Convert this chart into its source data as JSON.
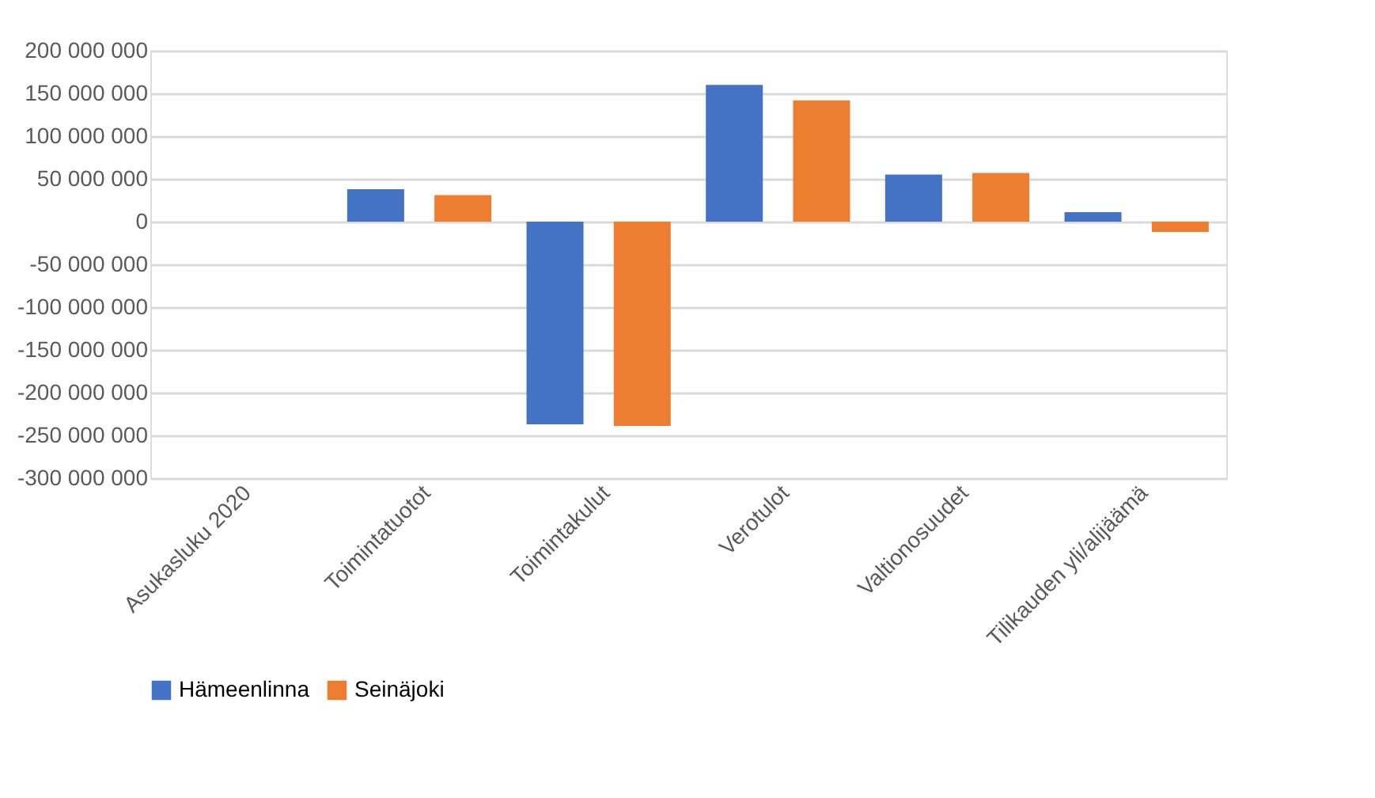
{
  "chart_data": {
    "type": "bar",
    "categories": [
      "Asukasluku 2020",
      "Toimintatuotot",
      "Toimintakulut",
      "Verotulot",
      "Valtionosuudet",
      "Tilikauden yli/alijäämä"
    ],
    "series": [
      {
        "name": "Hämeenlinna",
        "color": "#4472c4",
        "values": [
          0,
          38000000,
          -237000000,
          160000000,
          55000000,
          11000000
        ]
      },
      {
        "name": "Seinäjoki",
        "color": "#ed7d31",
        "values": [
          0,
          31000000,
          -239000000,
          142000000,
          57000000,
          -12000000
        ]
      }
    ],
    "ylim": [
      -300000000,
      200000000
    ],
    "yticks": [
      {
        "value": -300000000,
        "label": "-300 000 000"
      },
      {
        "value": -250000000,
        "label": "-250 000 000"
      },
      {
        "value": -200000000,
        "label": "-200 000 000"
      },
      {
        "value": -150000000,
        "label": "-150 000 000"
      },
      {
        "value": -100000000,
        "label": "-100 000 000"
      },
      {
        "value": -50000000,
        "label": "-50 000 000"
      },
      {
        "value": 0,
        "label": "0"
      },
      {
        "value": 50000000,
        "label": "50 000 000"
      },
      {
        "value": 100000000,
        "label": "100 000 000"
      },
      {
        "value": 150000000,
        "label": "150 000 000"
      },
      {
        "value": 200000000,
        "label": "200 000 000"
      }
    ],
    "grid": "y",
    "legend": "bottom"
  }
}
